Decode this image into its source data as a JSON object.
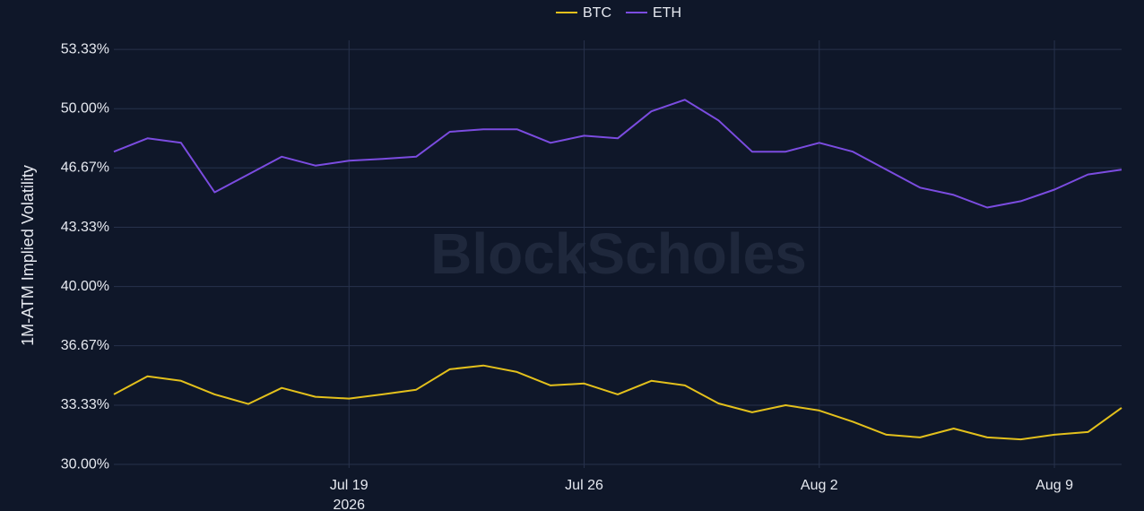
{
  "chart_data": {
    "type": "line",
    "y_label": "1M-ATM Implied Volatility",
    "watermark": "BlockScholes",
    "x": [
      "2026-07-12",
      "2026-07-13",
      "2026-07-14",
      "2026-07-15",
      "2026-07-16",
      "2026-07-17",
      "2026-07-18",
      "2026-07-19",
      "2026-07-20",
      "2026-07-21",
      "2026-07-22",
      "2026-07-23",
      "2026-07-24",
      "2026-07-25",
      "2026-07-26",
      "2026-07-27",
      "2026-07-28",
      "2026-07-29",
      "2026-07-30",
      "2026-07-31",
      "2026-08-01",
      "2026-08-02",
      "2026-08-03",
      "2026-08-04",
      "2026-08-05",
      "2026-08-06",
      "2026-08-07",
      "2026-08-08",
      "2026-08-09",
      "2026-08-10",
      "2026-08-11"
    ],
    "xlim": [
      "2026-07-12",
      "2026-08-11"
    ],
    "xticks": [
      {
        "value": "2026-07-19",
        "label": "Jul 19"
      },
      {
        "value": "2026-07-26",
        "label": "Jul 26"
      },
      {
        "value": "2026-08-02",
        "label": "Aug 2"
      },
      {
        "value": "2026-08-09",
        "label": "Aug 9"
      }
    ],
    "xtick_year": "2026",
    "ylim": [
      29.8,
      53.84
    ],
    "yticks": [
      {
        "value": 30,
        "label": "30.00%"
      },
      {
        "value": 33.33,
        "label": "33.33%"
      },
      {
        "value": 36.67,
        "label": "36.67%"
      },
      {
        "value": 40,
        "label": "40.00%"
      },
      {
        "value": 43.33,
        "label": "43.33%"
      },
      {
        "value": 46.67,
        "label": "46.67%"
      },
      {
        "value": 50,
        "label": "50.00%"
      },
      {
        "value": 53.33,
        "label": "53.33%"
      }
    ],
    "grid": true,
    "legend": "top",
    "series": [
      {
        "name": "BTC",
        "color": "#e3c01c",
        "values": [
          33.94,
          34.95,
          34.7,
          33.94,
          33.4,
          34.3,
          33.8,
          33.7,
          33.94,
          34.2,
          35.35,
          35.56,
          35.2,
          34.44,
          34.55,
          33.94,
          34.7,
          34.44,
          33.43,
          32.93,
          33.33,
          33.03,
          32.4,
          31.67,
          31.52,
          32.02,
          31.52,
          31.41,
          31.67,
          31.82,
          33.18
        ]
      },
      {
        "name": "ETH",
        "color": "#7b4ce0",
        "values": [
          47.58,
          48.33,
          48.08,
          45.3,
          46.3,
          47.3,
          46.8,
          47.07,
          47.17,
          47.3,
          48.7,
          48.84,
          48.84,
          48.08,
          48.48,
          48.33,
          49.85,
          50.5,
          49.34,
          47.58,
          47.58,
          48.08,
          47.58,
          46.57,
          45.56,
          45.15,
          44.44,
          44.8,
          45.45,
          46.3,
          46.57
        ]
      }
    ]
  }
}
